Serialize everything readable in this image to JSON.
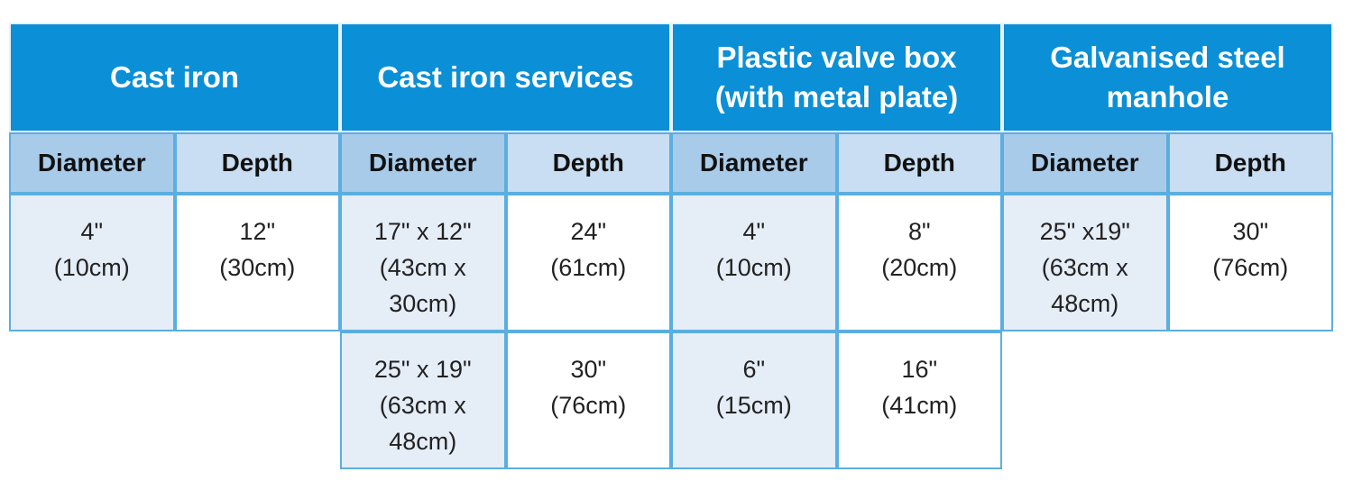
{
  "table": {
    "subheaders": [
      "Diameter",
      "Depth"
    ],
    "groups": [
      {
        "title": "Cast iron",
        "rows": [
          {
            "diameter": [
              "4\"",
              "(10cm)"
            ],
            "depth": [
              "12\"",
              "(30cm)"
            ]
          }
        ]
      },
      {
        "title": "Cast iron services",
        "rows": [
          {
            "diameter": [
              "17\" x 12\"",
              "(43cm x",
              "30cm)"
            ],
            "depth": [
              "24\"",
              "(61cm)"
            ]
          },
          {
            "diameter": [
              "25\" x 19\"",
              "(63cm x",
              "48cm)"
            ],
            "depth": [
              "30\"",
              "(76cm)"
            ]
          }
        ]
      },
      {
        "title": "Plastic valve box (with metal plate)",
        "rows": [
          {
            "diameter": [
              "4\"",
              "(10cm)"
            ],
            "depth": [
              "8\"",
              "(20cm)"
            ]
          },
          {
            "diameter": [
              "6\"",
              "(15cm)"
            ],
            "depth": [
              "16\"",
              "(41cm)"
            ]
          }
        ]
      },
      {
        "title": "Galvanised steel manhole",
        "rows": [
          {
            "diameter": [
              "25\" x19\"",
              "(63cm x",
              "48cm)"
            ],
            "depth": [
              "30\"",
              "(76cm)"
            ]
          }
        ]
      }
    ]
  }
}
